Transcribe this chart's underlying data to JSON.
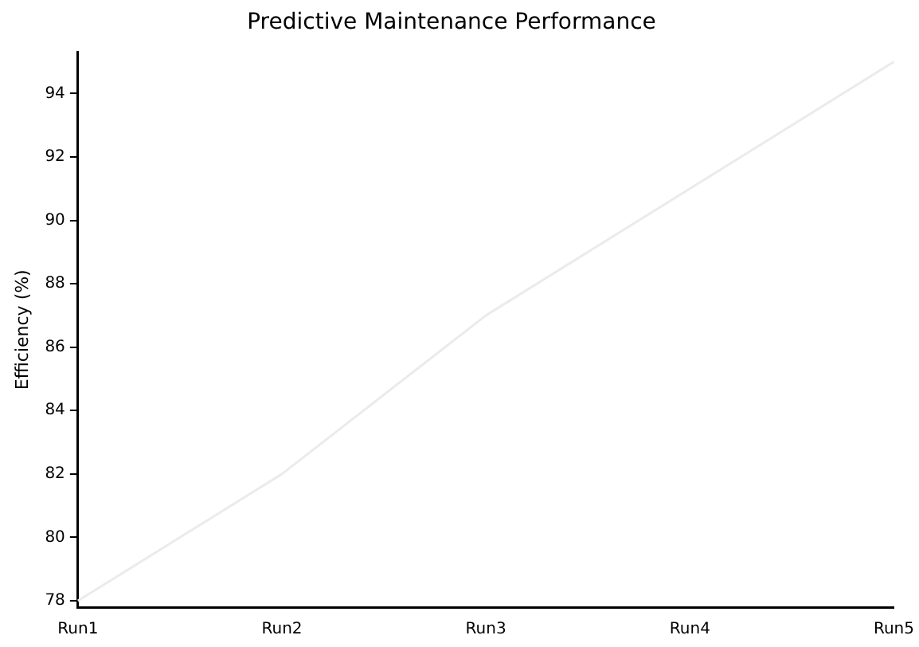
{
  "chart_data": {
    "type": "line",
    "title": "Predictive Maintenance Performance",
    "ylabel": "Efficiency (%)",
    "categories": [
      "Run1",
      "Run2",
      "Run3",
      "Run4",
      "Run5"
    ],
    "series": [
      {
        "color": "#ebebeb",
        "values": [
          78,
          82,
          87,
          91,
          95
        ]
      }
    ],
    "ylim": [
      77.8,
      95.3
    ],
    "yticks": [
      78,
      80,
      82,
      84,
      86,
      88,
      90,
      92,
      94
    ],
    "grid": false,
    "legend": false,
    "marker": "none",
    "line_style": "solid"
  }
}
